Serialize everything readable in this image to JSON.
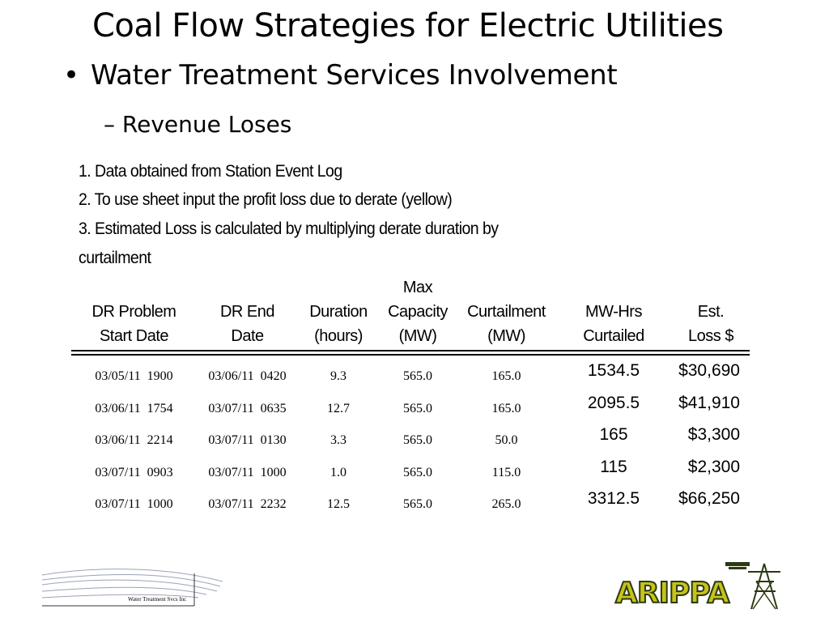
{
  "slide": {
    "title": "Coal Flow Strategies for Electric Utilities",
    "bullet": "Water Treatment Services Involvement",
    "subbullet": "– Revenue Loses"
  },
  "notes": [
    "1. Data obtained from Station Event Log",
    "2. To use sheet input the profit loss due to derate (yellow)",
    "3. Estimated Loss is calculated by multiplying derate duration by curtailment"
  ],
  "table": {
    "headers": [
      "DR Problem\nStart Date",
      "DR End\nDate",
      "Duration\n(hours)",
      "Max\nCapacity\n(MW)",
      "Curtailment\n(MW)",
      "MW-Hrs\nCurtailed",
      "Est.\nLoss $"
    ],
    "rows": [
      [
        "03/05/11  1900",
        "03/06/11  0420",
        "9.3",
        "565.0",
        "165.0",
        "1534.5",
        "$30,690"
      ],
      [
        "03/06/11  1754",
        "03/07/11  0635",
        "12.7",
        "565.0",
        "165.0",
        "2095.5",
        "$41,910"
      ],
      [
        "03/06/11  2214",
        "03/07/11  0130",
        "3.3",
        "565.0",
        "50.0",
        "165",
        "$3,300"
      ],
      [
        "03/07/11  0903",
        "03/07/11  1000",
        "1.0",
        "565.0",
        "115.0",
        "115",
        "$2,300"
      ],
      [
        "03/07/11  1000",
        "03/07/11  2232",
        "12.5",
        "565.0",
        "265.0",
        "3312.5",
        "$66,250"
      ]
    ]
  },
  "logos": {
    "left_text": "Water Treatment Svcs Inc",
    "right_text": "ARIPPA",
    "right_colors": {
      "fill": "#c8c21a",
      "outline": "#2a3a12"
    }
  }
}
